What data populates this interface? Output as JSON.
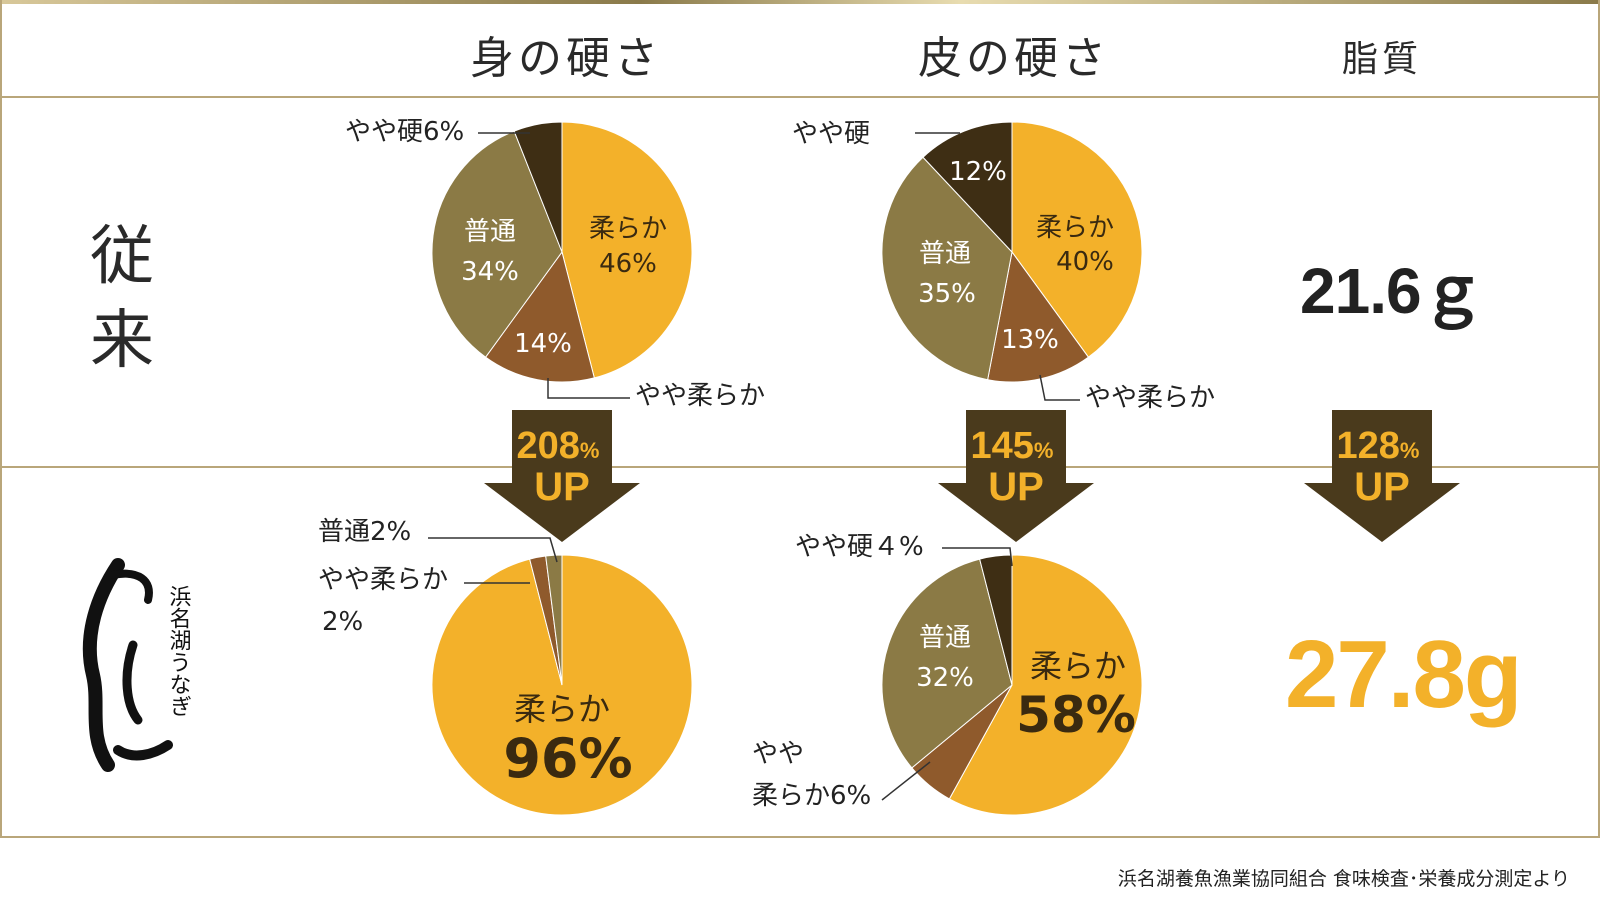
{
  "headers": {
    "meat": "身の硬さ",
    "skin": "皮の硬さ",
    "fat": "脂質"
  },
  "rows": {
    "old": "従来",
    "new_logo": "浜名湖うなぎ"
  },
  "fat": {
    "old": "21.6ｇ",
    "new": "27.8g"
  },
  "source": "浜名湖養魚漁業協同組合 食味検査･栄養成分測定より",
  "colors": {
    "soft": "#f3b12a",
    "slightly_soft": "#8f5a2c",
    "normal": "#8b7a45",
    "slightly_hard": "#3e2e14",
    "arrow": "#4a3a1c"
  },
  "chart_data": [
    {
      "type": "pie",
      "label": "身の硬さ・従来",
      "slices": [
        {
          "name": "柔らか",
          "value": 46,
          "color": "#f3b12a"
        },
        {
          "name": "やや柔らか",
          "value": 14,
          "color": "#8f5a2c"
        },
        {
          "name": "普通",
          "value": 34,
          "color": "#8b7a45"
        },
        {
          "name": "やや硬",
          "value": 6,
          "color": "#3e2e14"
        }
      ]
    },
    {
      "type": "pie",
      "label": "皮の硬さ・従来",
      "slices": [
        {
          "name": "柔らか",
          "value": 40,
          "color": "#f3b12a"
        },
        {
          "name": "やや柔らか",
          "value": 13,
          "color": "#8f5a2c"
        },
        {
          "name": "普通",
          "value": 35,
          "color": "#8b7a45"
        },
        {
          "name": "やや硬",
          "value": 12,
          "color": "#3e2e14"
        }
      ]
    },
    {
      "type": "pie",
      "label": "身の硬さ・浜名湖うなぎ",
      "slices": [
        {
          "name": "柔らか",
          "value": 96,
          "color": "#f3b12a"
        },
        {
          "name": "やや柔らか",
          "value": 2,
          "color": "#8f5a2c"
        },
        {
          "name": "普通",
          "value": 2,
          "color": "#8b7a45"
        }
      ]
    },
    {
      "type": "pie",
      "label": "皮の硬さ・浜名湖うなぎ",
      "slices": [
        {
          "name": "柔らか",
          "value": 58,
          "color": "#f3b12a"
        },
        {
          "name": "やや柔らか",
          "value": 6,
          "color": "#8f5a2c"
        },
        {
          "name": "普通",
          "value": 32,
          "color": "#8b7a45"
        },
        {
          "name": "やや硬",
          "value": 4,
          "color": "#3e2e14"
        }
      ]
    }
  ],
  "labels": {
    "p1": {
      "soft": "柔らか",
      "soft_pct": "46%",
      "normal": "普通",
      "normal_pct": "34%",
      "sl_soft_pct": "14%",
      "sl_soft": "やや柔らか",
      "sl_hard": "やや硬6%"
    },
    "p2": {
      "soft": "柔らか",
      "soft_pct": "40%",
      "normal": "普通",
      "normal_pct": "35%",
      "sl_soft_pct": "13%",
      "sl_soft": "やや柔らか",
      "sl_hard": "やや硬",
      "sl_hard_pct": "12%"
    },
    "p3": {
      "soft": "柔らか",
      "soft_pct": "96%",
      "normal": "普通2%",
      "sl_soft": "やや柔らか",
      "sl_soft_pct": "2%"
    },
    "p4": {
      "soft": "柔らか",
      "soft_pct": "58%",
      "normal": "普通",
      "normal_pct": "32%",
      "sl_hard": "やや硬４%",
      "sl_soft_1": "やや",
      "sl_soft_2": "柔らか6%"
    }
  },
  "arrows": [
    {
      "num": "208",
      "unit": "%",
      "up": "UP"
    },
    {
      "num": "145",
      "unit": "%",
      "up": "UP"
    },
    {
      "num": "128",
      "unit": "%",
      "up": "UP"
    }
  ]
}
